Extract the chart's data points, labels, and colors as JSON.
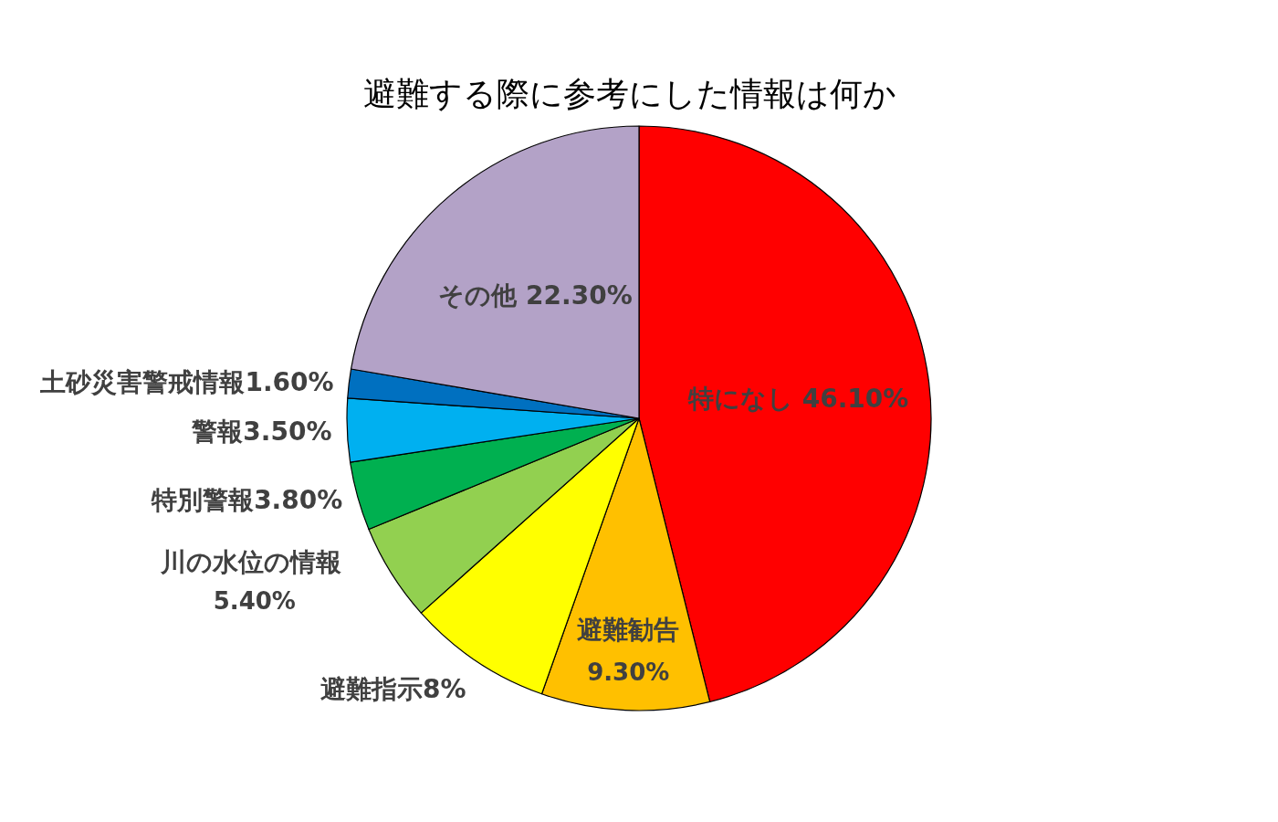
{
  "chart_data": {
    "type": "pie",
    "title": "避難する際に参考にした情報は何か",
    "categories": [
      "特になし",
      "避難勧告",
      "避難指示",
      "川の水位の情報",
      "特別警報",
      "警報",
      "土砂災害警戒情報",
      "その他"
    ],
    "values": [
      46.1,
      9.3,
      8,
      5.4,
      3.8,
      3.5,
      1.6,
      22.3
    ],
    "colors": [
      "#ff0000",
      "#ffc000",
      "#ffff00",
      "#92d050",
      "#00b050",
      "#00b0f0",
      "#0070c0",
      "#b3a2c7"
    ],
    "value_labels": [
      "46.10%",
      "9.30%",
      "8%",
      "5.40%",
      "3.80%",
      "3.50%",
      "1.60%",
      "22.30%"
    ]
  }
}
